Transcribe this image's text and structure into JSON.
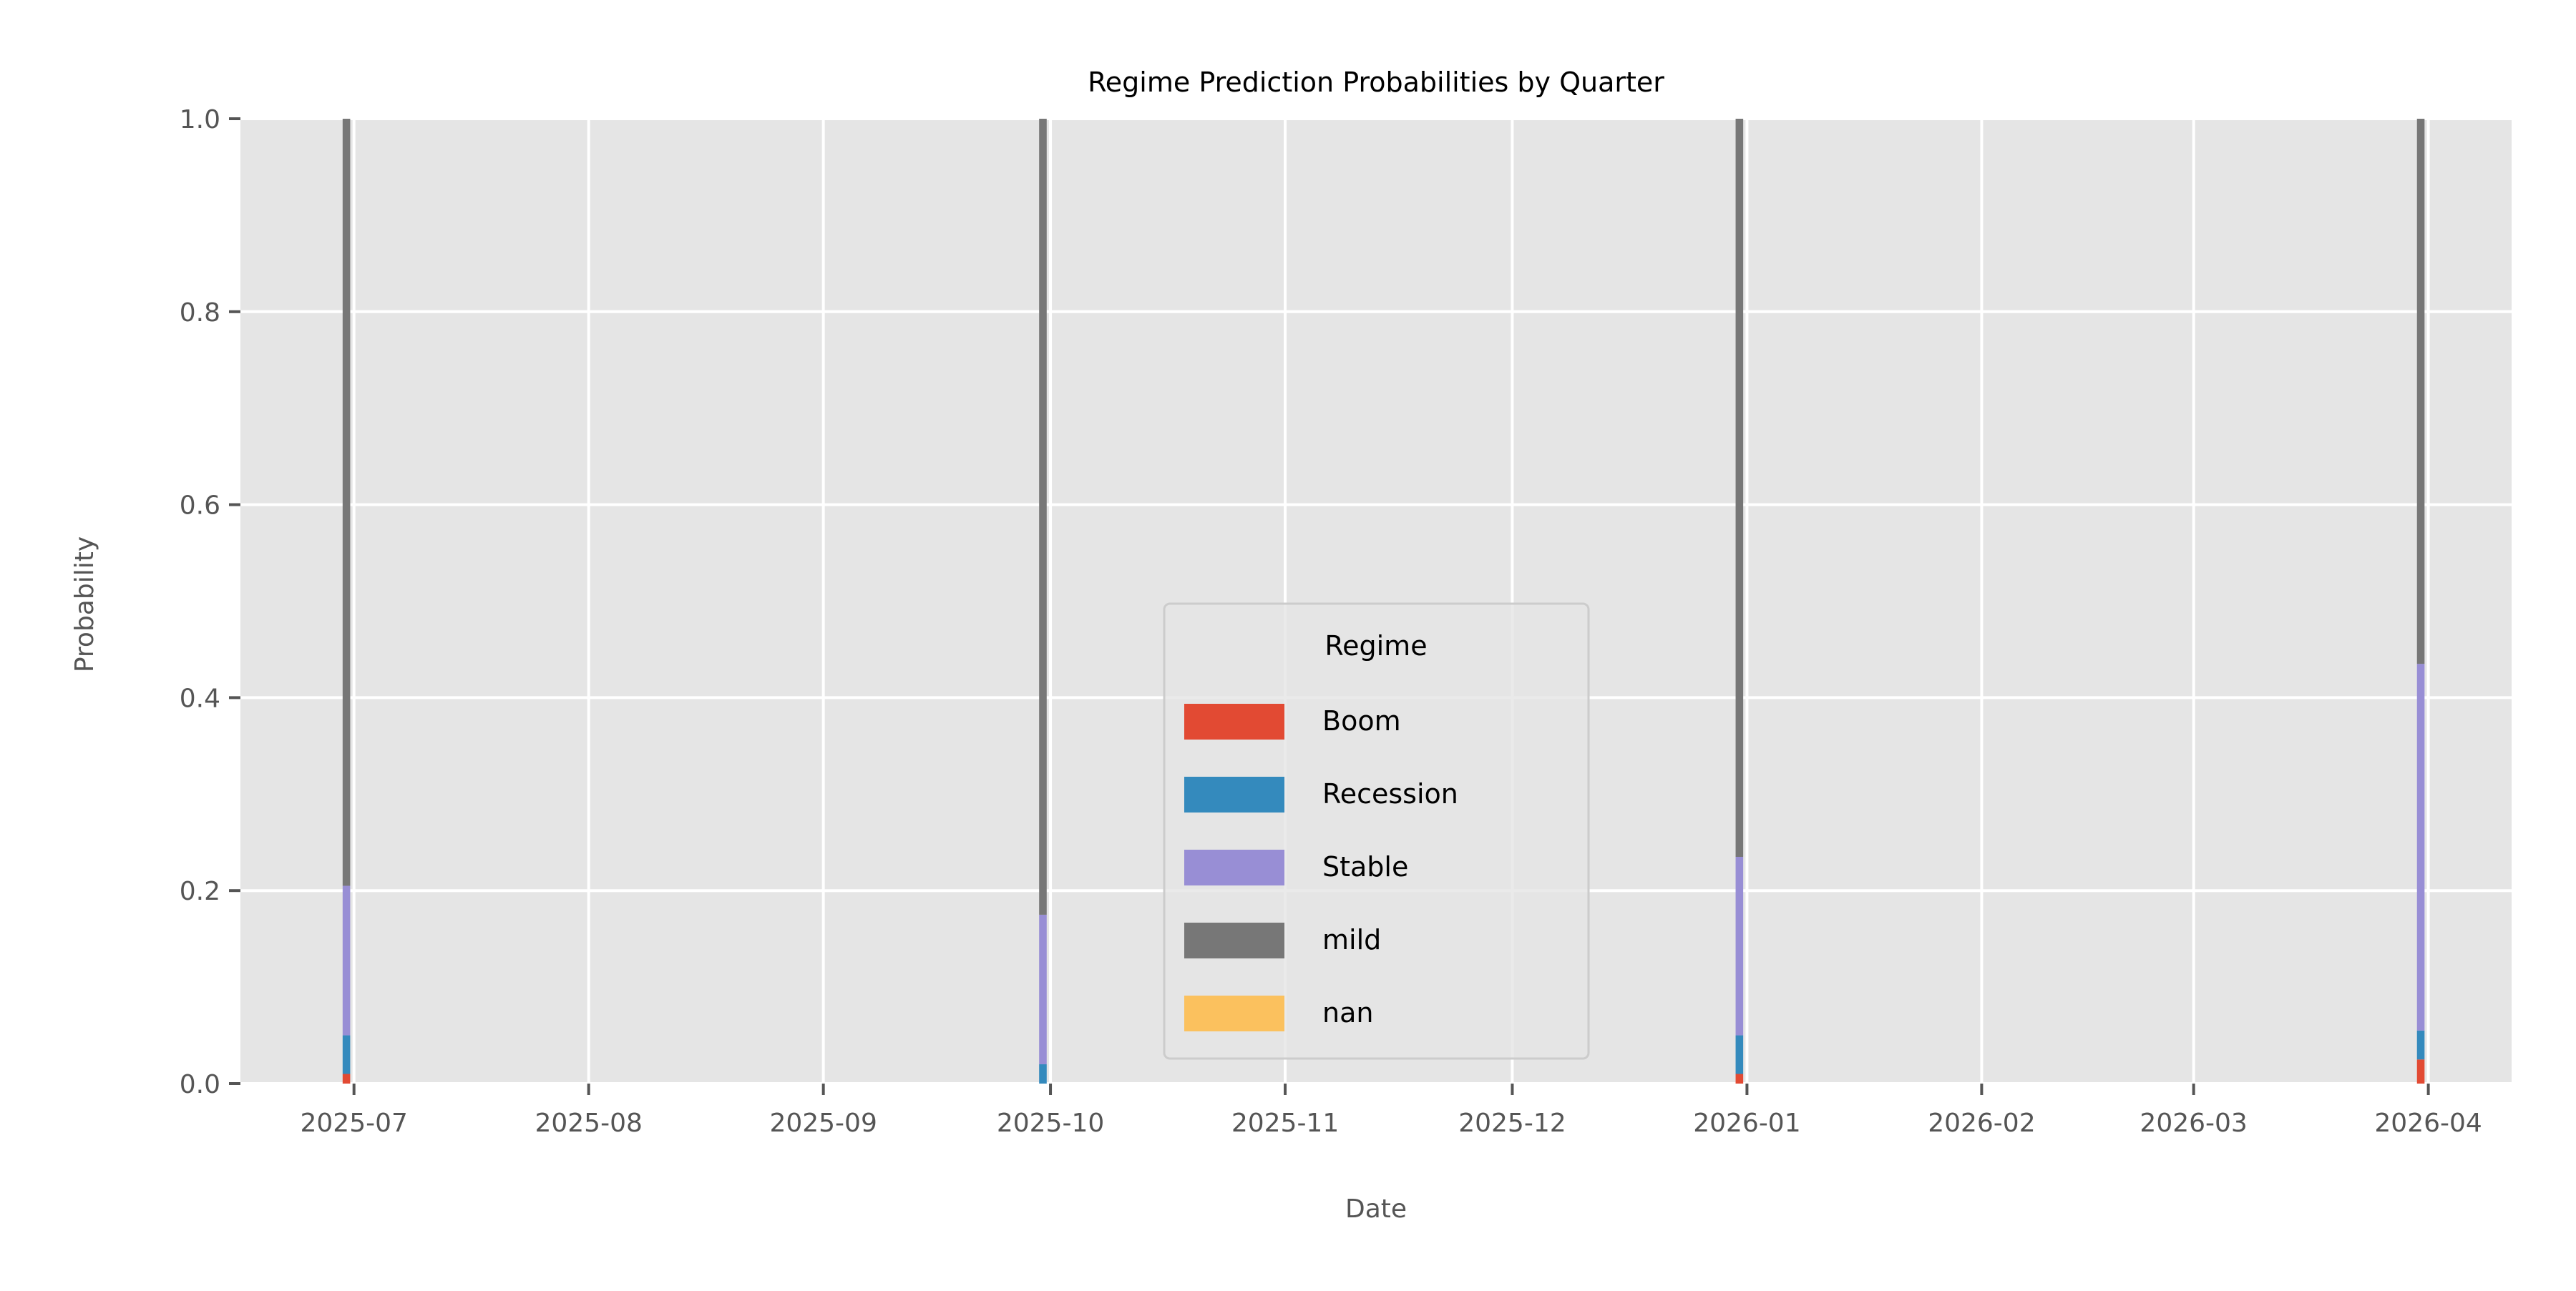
{
  "chart_data": {
    "type": "bar",
    "stacked": true,
    "title": "Regime Prediction Probabilities by Quarter",
    "xlabel": "Date",
    "ylabel": "Probability",
    "x_axis_type": "date",
    "xlim": [
      "2025-06-16",
      "2026-04-12"
    ],
    "ylim": [
      0.0,
      1.0
    ],
    "grid": true,
    "x_ticks": [
      "2025-07-01",
      "2025-08-01",
      "2025-09-01",
      "2025-10-01",
      "2025-11-01",
      "2025-12-01",
      "2026-01-01",
      "2026-02-01",
      "2026-03-01",
      "2026-04-01"
    ],
    "x_tick_labels": [
      "2025-07",
      "2025-08",
      "2025-09",
      "2025-10",
      "2025-11",
      "2025-12",
      "2026-01",
      "2026-02",
      "2026-03",
      "2026-04"
    ],
    "y_ticks": [
      0.0,
      0.2,
      0.4,
      0.6,
      0.8,
      1.0
    ],
    "y_tick_labels": [
      "0.0",
      "0.2",
      "0.4",
      "0.6",
      "0.8",
      "1.0"
    ],
    "dates": [
      "2025-06-30",
      "2025-09-30",
      "2025-12-31",
      "2026-03-31"
    ],
    "series": [
      {
        "name": "Boom",
        "color": "#E24A33",
        "values": [
          0.01,
          0.0,
          0.01,
          0.025
        ]
      },
      {
        "name": "Recession",
        "color": "#348ABD",
        "values": [
          0.04,
          0.02,
          0.04,
          0.03
        ]
      },
      {
        "name": "Stable",
        "color": "#988ED5",
        "values": [
          0.155,
          0.155,
          0.185,
          0.38
        ]
      },
      {
        "name": "mild",
        "color": "#777777",
        "values": [
          0.795,
          0.825,
          0.765,
          0.565
        ]
      },
      {
        "name": "nan",
        "color": "#FBC15E",
        "values": [
          0.0,
          0.0,
          0.0,
          0.0
        ]
      }
    ],
    "legend": {
      "title": "Regime",
      "placement": "lower center",
      "entries": [
        "Boom",
        "Recession",
        "Stable",
        "mild",
        "nan"
      ]
    }
  }
}
